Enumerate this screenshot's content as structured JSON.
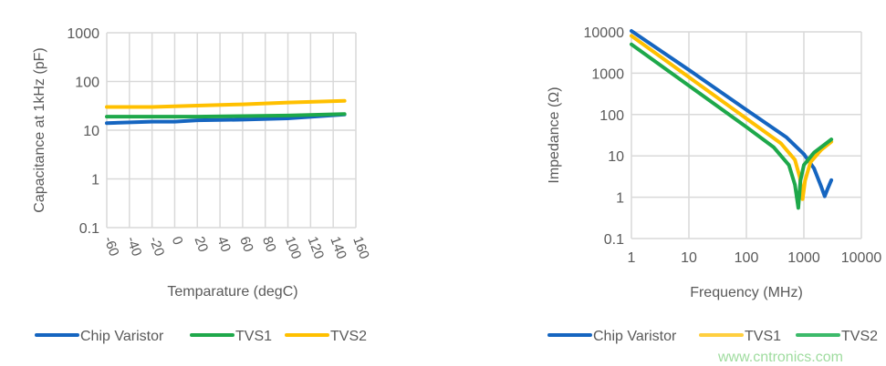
{
  "chart_data": [
    {
      "type": "line",
      "xlabel": "Temparature (degC)",
      "ylabel": "Capacitance at 1kHz (pF)",
      "yscale": "log",
      "ylim": [
        0.1,
        1000
      ],
      "xlim": [
        -60,
        160
      ],
      "xticks": [
        "-60",
        "-40",
        "-20",
        "0",
        "20",
        "40",
        "60",
        "80",
        "100",
        "120",
        "140",
        "160"
      ],
      "yticks": [
        "0.1",
        "1",
        "10",
        "100",
        "1000"
      ],
      "grid": true,
      "legend": "bottom",
      "series": [
        {
          "name": "Chip Varistor",
          "color": "#1565c0",
          "x": [
            -60,
            -20,
            0,
            20,
            60,
            100,
            150
          ],
          "y": [
            14,
            15,
            15,
            16,
            16.5,
            17.5,
            21
          ]
        },
        {
          "name": "TVS1",
          "color": "#1ea84a",
          "x": [
            -60,
            -20,
            0,
            20,
            60,
            100,
            150
          ],
          "y": [
            19,
            19,
            19,
            19,
            19.5,
            20,
            21.5
          ]
        },
        {
          "name": "TVS2",
          "color": "#ffc000",
          "x": [
            -60,
            -20,
            0,
            20,
            60,
            100,
            150
          ],
          "y": [
            30,
            30,
            31,
            32,
            34,
            37,
            40
          ]
        }
      ]
    },
    {
      "type": "line",
      "xlabel": "Frequency (MHz)",
      "ylabel": "Impedance (Ω)",
      "xscale": "log",
      "yscale": "log",
      "xlim": [
        1,
        10000
      ],
      "ylim": [
        0.1,
        10000
      ],
      "xticks": [
        "1",
        "10",
        "100",
        "1000",
        "10000"
      ],
      "yticks": [
        "0.1",
        "1",
        "10",
        "100",
        "1000",
        "10000"
      ],
      "grid": true,
      "legend": "bottom",
      "series": [
        {
          "name": "Chip Varistor",
          "color": "#1565c0",
          "x": [
            1,
            10,
            100,
            500,
            1000,
            1500,
            2000,
            2300,
            2600,
            3000
          ],
          "y": [
            10500,
            1200,
            130,
            28,
            11,
            5,
            1.8,
            1.05,
            1.6,
            2.6
          ]
        },
        {
          "name": "TVS1",
          "color": "#ffc000",
          "x": [
            1,
            10,
            100,
            400,
            700,
            850,
            950,
            1050,
            1300,
            2000,
            3000
          ],
          "y": [
            8000,
            800,
            80,
            20,
            8,
            3,
            0.9,
            2.5,
            7,
            14,
            22
          ]
        },
        {
          "name": "TVS2",
          "color": "#1ea84a",
          "x": [
            1,
            10,
            100,
            300,
            550,
            700,
            800,
            870,
            1000,
            1500,
            3000
          ],
          "y": [
            5000,
            500,
            50,
            16,
            6,
            2,
            0.55,
            2.5,
            6,
            12,
            25
          ]
        }
      ]
    }
  ],
  "watermark": "www.cntronics.com"
}
